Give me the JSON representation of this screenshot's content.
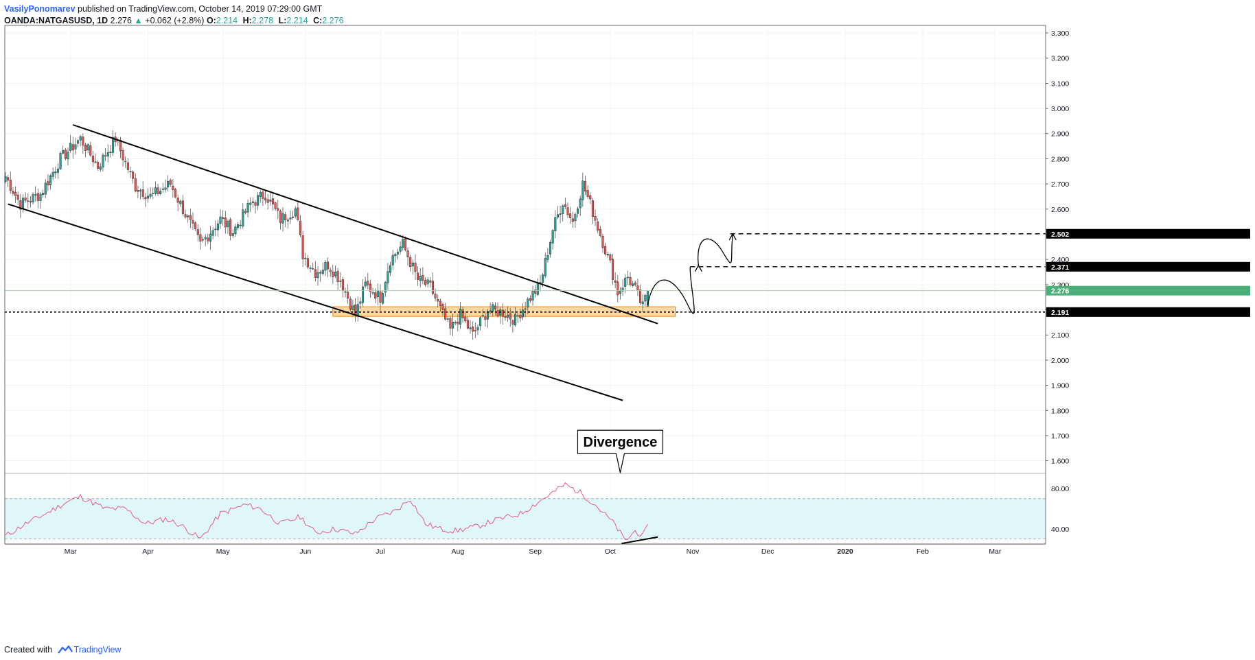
{
  "header": {
    "author": "VasilyPonomarev",
    "published_text": "published on TradingView.com, October 14, 2019 07:29:00 GMT",
    "symbol": "OANDA:NATGASUSD, 1D",
    "last": "2.276",
    "change": "+0.062 (+2.8%)",
    "o_label": "O:",
    "o_value": "2.214",
    "h_label": "H:",
    "h_value": "2.278",
    "l_label": "L:",
    "l_value": "2.214",
    "c_label": "C:",
    "c_value": "2.276"
  },
  "footer": {
    "created_with": "Created with",
    "brand": "TradingView"
  },
  "colors": {
    "up": "#26a69a",
    "down": "#ef5350",
    "line": "#000000",
    "zone_fill": "#ffcc80",
    "zone_stroke": "#f57c00",
    "rsi_line": "#e91e63",
    "rsi_band": "#e0f7fa",
    "last_price_bg": "#4caf7a"
  },
  "chart_data": {
    "type": "candlestick",
    "symbol": "OANDA:NATGASUSD",
    "interval": "1D",
    "y_axis": {
      "min": 1.55,
      "max": 3.33,
      "ticks": [
        "1.600",
        "1.700",
        "1.800",
        "1.900",
        "2.000",
        "2.100",
        "2.200",
        "2.300",
        "2.400",
        "2.500",
        "2.600",
        "2.700",
        "2.800",
        "2.900",
        "3.000",
        "3.100",
        "3.200",
        "3.300"
      ]
    },
    "x_axis": {
      "labels": [
        "Mar",
        "Apr",
        "May",
        "Jun",
        "Jul",
        "Aug",
        "Sep",
        "Oct",
        "Nov",
        "Dec",
        "2020",
        "Feb",
        "Mar"
      ],
      "label_days": [
        26,
        57,
        87,
        120,
        150,
        181,
        212,
        242,
        275,
        305,
        336,
        367,
        396
      ]
    },
    "price_levels": [
      {
        "value": 2.502,
        "label": "2.502",
        "style": "dashed"
      },
      {
        "value": 2.371,
        "label": "2.371",
        "style": "dashed"
      },
      {
        "value": 2.191,
        "label": "2.191",
        "style": "dotted"
      }
    ],
    "last_price": {
      "value": 2.276,
      "label": "2.276"
    },
    "trendlines": [
      {
        "from": {
          "day": 27,
          "price": 2.935
        },
        "to": {
          "day": 261,
          "price": 2.145
        }
      },
      {
        "from": {
          "day": 1,
          "price": 2.62
        },
        "to": {
          "day": 247,
          "price": 1.84
        }
      },
      {
        "from": {
          "day": 242,
          "price": 1.61
        },
        "to": {
          "day": 261,
          "price": 1.64
        }
      }
    ],
    "support_zone": {
      "day_start": 131,
      "day_end": 268,
      "price_low": 2.174,
      "price_high": 2.212
    },
    "annotation": {
      "text": "Divergence",
      "day": 246,
      "price": 1.675
    },
    "projection_path": [
      {
        "day": 257,
        "price": 2.22
      },
      {
        "day": 262,
        "price": 2.31
      },
      {
        "day": 273,
        "price": 2.22
      },
      {
        "day": 274,
        "price": 2.371
      },
      {
        "day": 276,
        "price": 2.44
      },
      {
        "day": 282,
        "price": 2.46
      },
      {
        "day": 287,
        "price": 2.43
      },
      {
        "day": 291,
        "price": 2.502
      }
    ],
    "candles_anchor": [
      {
        "day": 0,
        "price": 2.73
      },
      {
        "day": 6,
        "price": 2.62
      },
      {
        "day": 14,
        "price": 2.66
      },
      {
        "day": 22,
        "price": 2.8
      },
      {
        "day": 30,
        "price": 2.88
      },
      {
        "day": 37,
        "price": 2.77
      },
      {
        "day": 44,
        "price": 2.88
      },
      {
        "day": 52,
        "price": 2.69
      },
      {
        "day": 58,
        "price": 2.65
      },
      {
        "day": 66,
        "price": 2.7
      },
      {
        "day": 71,
        "price": 2.6
      },
      {
        "day": 78,
        "price": 2.46
      },
      {
        "day": 86,
        "price": 2.56
      },
      {
        "day": 91,
        "price": 2.51
      },
      {
        "day": 98,
        "price": 2.62
      },
      {
        "day": 104,
        "price": 2.66
      },
      {
        "day": 110,
        "price": 2.56
      },
      {
        "day": 116,
        "price": 2.6
      },
      {
        "day": 119,
        "price": 2.42
      },
      {
        "day": 124,
        "price": 2.35
      },
      {
        "day": 129,
        "price": 2.38
      },
      {
        "day": 134,
        "price": 2.32
      },
      {
        "day": 140,
        "price": 2.18
      },
      {
        "day": 144,
        "price": 2.3
      },
      {
        "day": 150,
        "price": 2.25
      },
      {
        "day": 154,
        "price": 2.4
      },
      {
        "day": 159,
        "price": 2.46
      },
      {
        "day": 165,
        "price": 2.32
      },
      {
        "day": 170,
        "price": 2.29
      },
      {
        "day": 175,
        "price": 2.18
      },
      {
        "day": 178,
        "price": 2.12
      },
      {
        "day": 182,
        "price": 2.18
      },
      {
        "day": 187,
        "price": 2.1
      },
      {
        "day": 193,
        "price": 2.2
      },
      {
        "day": 199,
        "price": 2.19
      },
      {
        "day": 204,
        "price": 2.16
      },
      {
        "day": 210,
        "price": 2.25
      },
      {
        "day": 214,
        "price": 2.3
      },
      {
        "day": 219,
        "price": 2.52
      },
      {
        "day": 223,
        "price": 2.63
      },
      {
        "day": 227,
        "price": 2.55
      },
      {
        "day": 231,
        "price": 2.7
      },
      {
        "day": 234,
        "price": 2.62
      },
      {
        "day": 238,
        "price": 2.5
      },
      {
        "day": 242,
        "price": 2.38
      },
      {
        "day": 245,
        "price": 2.27
      },
      {
        "day": 249,
        "price": 2.33
      },
      {
        "day": 252,
        "price": 2.28
      },
      {
        "day": 255,
        "price": 2.21
      },
      {
        "day": 257,
        "price": 2.276
      }
    ],
    "rsi": {
      "ticks": [
        "80.00",
        "40.00"
      ],
      "levels": [
        70,
        30
      ],
      "range": [
        25,
        93
      ],
      "anchors": [
        {
          "day": 0,
          "value": 33
        },
        {
          "day": 8,
          "value": 45
        },
        {
          "day": 16,
          "value": 55
        },
        {
          "day": 24,
          "value": 66
        },
        {
          "day": 30,
          "value": 72
        },
        {
          "day": 40,
          "value": 60
        },
        {
          "day": 48,
          "value": 60
        },
        {
          "day": 56,
          "value": 45
        },
        {
          "day": 64,
          "value": 50
        },
        {
          "day": 70,
          "value": 44
        },
        {
          "day": 78,
          "value": 30
        },
        {
          "day": 86,
          "value": 55
        },
        {
          "day": 96,
          "value": 64
        },
        {
          "day": 102,
          "value": 60
        },
        {
          "day": 110,
          "value": 45
        },
        {
          "day": 118,
          "value": 52
        },
        {
          "day": 124,
          "value": 36
        },
        {
          "day": 132,
          "value": 40
        },
        {
          "day": 140,
          "value": 35
        },
        {
          "day": 148,
          "value": 50
        },
        {
          "day": 156,
          "value": 58
        },
        {
          "day": 162,
          "value": 70
        },
        {
          "day": 168,
          "value": 45
        },
        {
          "day": 174,
          "value": 40
        },
        {
          "day": 180,
          "value": 38
        },
        {
          "day": 188,
          "value": 42
        },
        {
          "day": 198,
          "value": 50
        },
        {
          "day": 206,
          "value": 55
        },
        {
          "day": 214,
          "value": 68
        },
        {
          "day": 224,
          "value": 84
        },
        {
          "day": 230,
          "value": 76
        },
        {
          "day": 236,
          "value": 64
        },
        {
          "day": 244,
          "value": 44
        },
        {
          "day": 248,
          "value": 28
        },
        {
          "day": 252,
          "value": 38
        },
        {
          "day": 255,
          "value": 33
        },
        {
          "day": 257,
          "value": 42
        }
      ]
    }
  }
}
